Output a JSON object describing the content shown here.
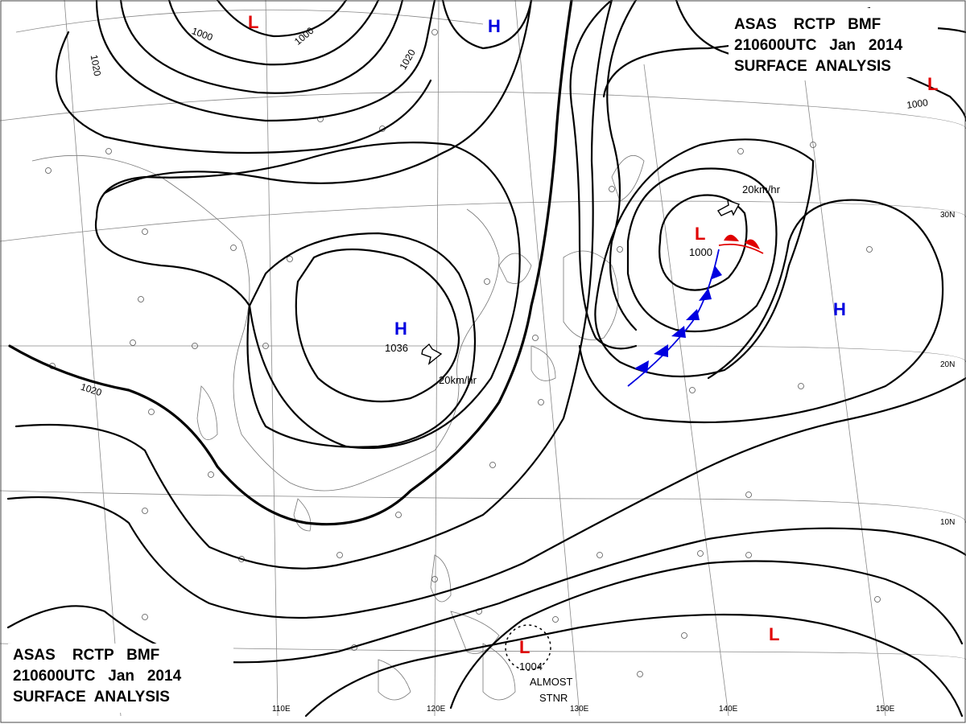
{
  "header": {
    "line1": "ASAS    RCTP   BMF",
    "line2": "210600UTC   Jan   2014",
    "line3": "SURFACE  ANALYSIS"
  },
  "footer": {
    "line1": "ASAS    RCTP   BMF",
    "line2": "210600UTC   Jan   2014",
    "line3": "SURFACE  ANALYSIS"
  },
  "grid": {
    "longitudes": [
      "110E",
      "120E",
      "130E",
      "140E",
      "150E"
    ],
    "latitudes": [
      "30N",
      "20N",
      "10N"
    ]
  },
  "isobars": [
    "1000",
    "1000",
    "1020",
    "1020",
    "1000",
    "1020"
  ],
  "systems": [
    {
      "type": "L",
      "color": "#e00000",
      "value": ""
    },
    {
      "type": "H",
      "color": "#0000e0",
      "value": ""
    },
    {
      "type": "L",
      "color": "#e00000",
      "value": ""
    },
    {
      "type": "H",
      "color": "#0000e0",
      "value": "1036"
    },
    {
      "type": "L",
      "color": "#e00000",
      "value": "1000"
    },
    {
      "type": "H",
      "color": "#0000e0",
      "value": ""
    },
    {
      "type": "L",
      "color": "#e00000",
      "value": "1004"
    },
    {
      "type": "L",
      "color": "#e00000",
      "value": ""
    }
  ],
  "motions": [
    "20km/hr",
    "20km/hr"
  ],
  "annotations": {
    "stationary_line1": "ALMOST",
    "stationary_line2": "STNR"
  }
}
